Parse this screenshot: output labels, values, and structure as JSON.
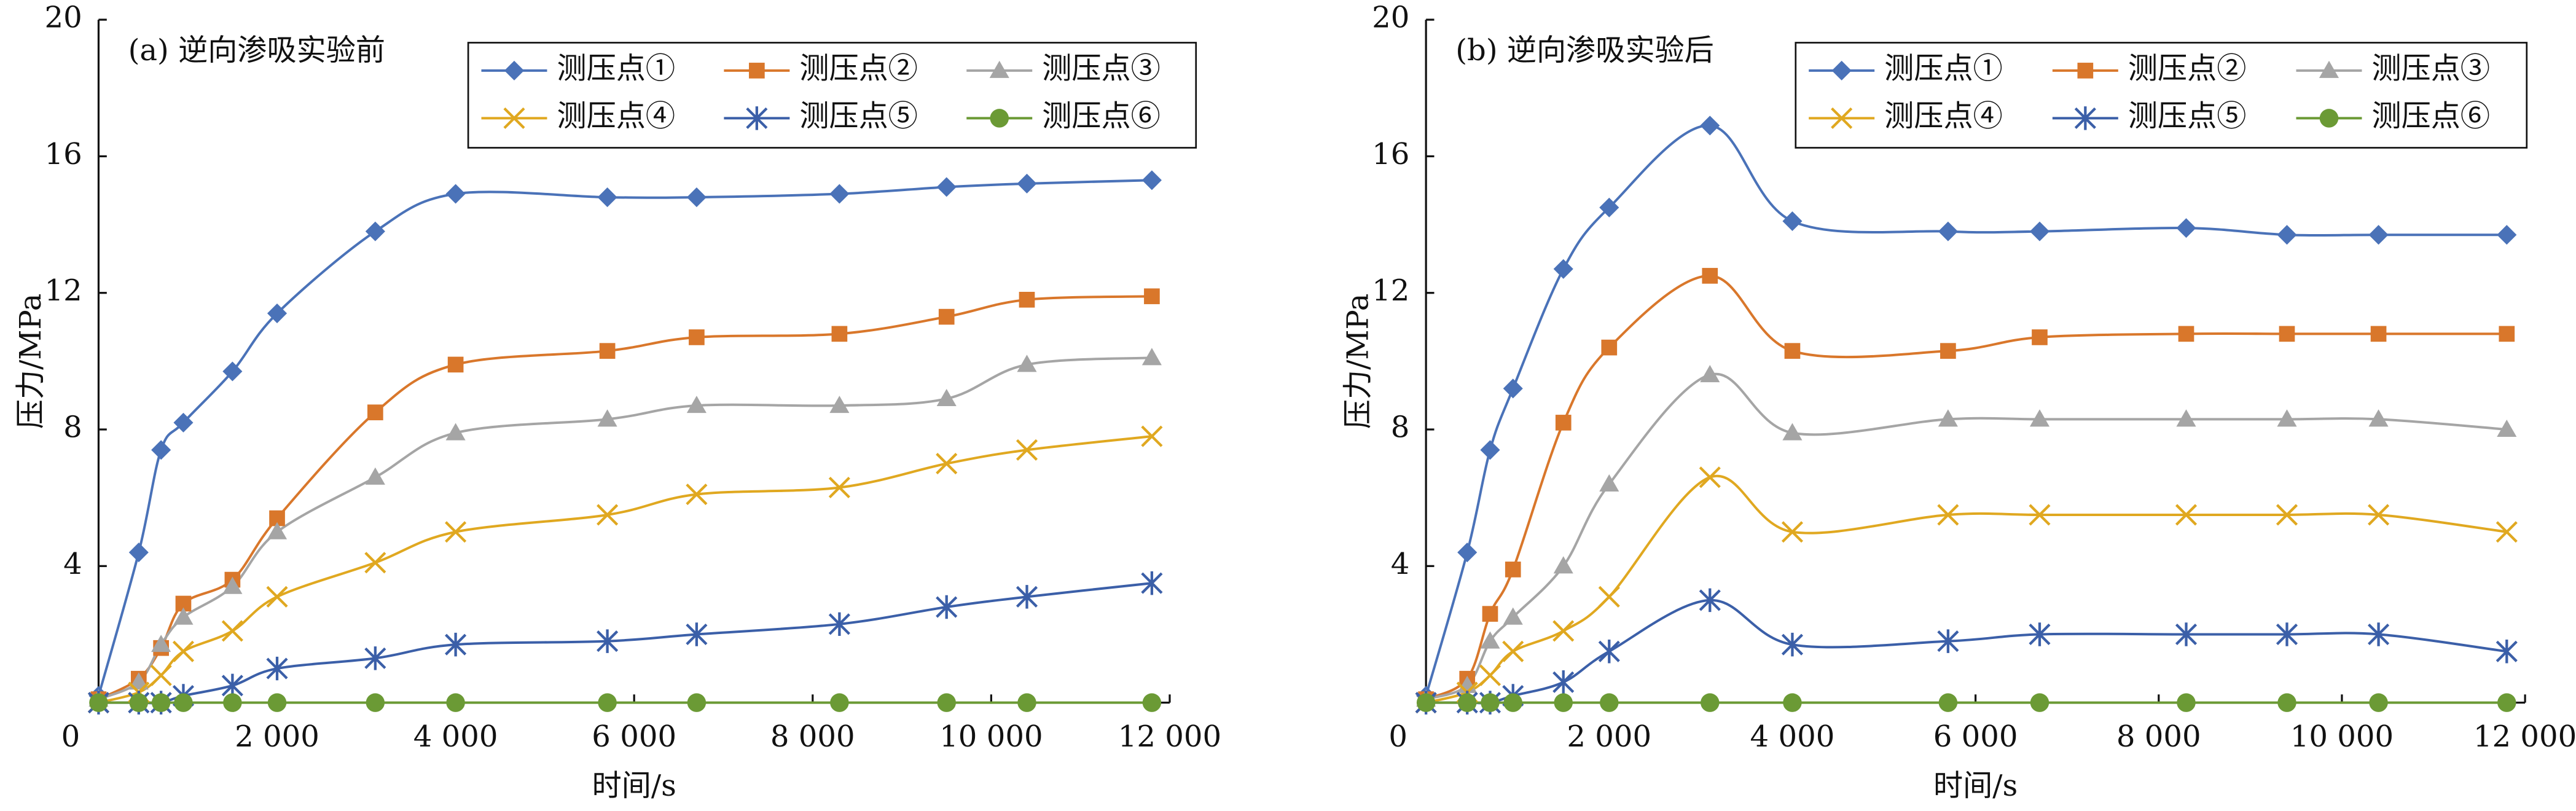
{
  "chart_data": [
    {
      "type": "line",
      "title": "(a) 逆向渗吸实验前",
      "xlabel": "时间/s",
      "ylabel": "压力/MPa",
      "x": [
        0,
        450,
        700,
        950,
        1500,
        2000,
        3100,
        4000,
        5700,
        6700,
        8300,
        9500,
        10400,
        11800
      ],
      "xlim": [
        0,
        12000
      ],
      "ylim": [
        0,
        20
      ],
      "xticks": [
        0,
        {
          "value": 2000,
          "label": "2 000"
        },
        {
          "value": 4000,
          "label": "4 000"
        },
        {
          "value": 6000,
          "label": "6 000"
        },
        {
          "value": 8000,
          "label": "8 000"
        },
        {
          "value": 10000,
          "label": "10 000"
        },
        {
          "value": 12000,
          "label": "12 000"
        }
      ],
      "yticks": [
        4,
        8,
        12,
        16,
        20
      ],
      "legend": "upper right",
      "smooth": true,
      "series": [
        {
          "name": "测压点①",
          "color": "#4a72b8",
          "marker": "diamond",
          "values": [
            0.2,
            4.4,
            7.4,
            8.2,
            9.7,
            11.4,
            13.8,
            14.9,
            14.8,
            14.8,
            14.9,
            15.1,
            15.2,
            15.3
          ]
        },
        {
          "name": "测压点②",
          "color": "#d9772b",
          "marker": "square",
          "values": [
            0.1,
            0.7,
            1.6,
            2.9,
            3.6,
            5.4,
            8.5,
            9.9,
            10.3,
            10.7,
            10.8,
            11.3,
            11.8,
            11.9
          ]
        },
        {
          "name": "测压点③",
          "color": "#a5a5a5",
          "marker": "triangle",
          "values": [
            0.1,
            0.6,
            1.7,
            2.5,
            3.4,
            5.0,
            6.6,
            7.9,
            8.3,
            8.7,
            8.7,
            8.9,
            9.9,
            10.1
          ]
        },
        {
          "name": "测压点④",
          "color": "#e0a820",
          "marker": "x",
          "values": [
            0,
            0.3,
            0.8,
            1.5,
            2.1,
            3.1,
            4.1,
            5.0,
            5.5,
            6.1,
            6.3,
            7.0,
            7.4,
            7.8
          ]
        },
        {
          "name": "测压点⑤",
          "color": "#3b5fa8",
          "marker": "star",
          "values": [
            0,
            0,
            0,
            0.2,
            0.5,
            1.0,
            1.3,
            1.7,
            1.8,
            2.0,
            2.3,
            2.8,
            3.1,
            3.5
          ]
        },
        {
          "name": "测压点⑥",
          "color": "#6b9a35",
          "marker": "circle",
          "values": [
            0,
            0,
            0,
            0,
            0,
            0,
            0,
            0,
            0,
            0,
            0,
            0,
            0,
            0
          ]
        }
      ]
    },
    {
      "type": "line",
      "title": "(b) 逆向渗吸实验后",
      "xlabel": "时间/s",
      "ylabel": "压力/MPa",
      "x": [
        0,
        450,
        700,
        950,
        1500,
        2000,
        3100,
        4000,
        5700,
        6700,
        8300,
        9400,
        10400,
        11800
      ],
      "xlim": [
        0,
        12000
      ],
      "ylim": [
        0,
        20
      ],
      "xticks": [
        0,
        {
          "value": 2000,
          "label": "2 000"
        },
        {
          "value": 4000,
          "label": "4 000"
        },
        {
          "value": 6000,
          "label": "6 000"
        },
        {
          "value": 8000,
          "label": "8 000"
        },
        {
          "value": 10000,
          "label": "10 000"
        },
        {
          "value": 12000,
          "label": "12 000"
        }
      ],
      "yticks": [
        4,
        8,
        12,
        16,
        20
      ],
      "legend": "upper right",
      "smooth": true,
      "series": [
        {
          "name": "测压点①",
          "color": "#4a72b8",
          "marker": "diamond",
          "values": [
            0.2,
            4.4,
            7.4,
            9.2,
            12.7,
            14.5,
            16.9,
            14.1,
            13.8,
            13.8,
            13.9,
            13.7,
            13.7,
            13.7
          ]
        },
        {
          "name": "测压点②",
          "color": "#d9772b",
          "marker": "square",
          "values": [
            0.1,
            0.7,
            2.6,
            3.9,
            8.2,
            10.4,
            12.5,
            10.3,
            10.3,
            10.7,
            10.8,
            10.8,
            10.8,
            10.8
          ]
        },
        {
          "name": "测压点③",
          "color": "#a5a5a5",
          "marker": "triangle",
          "values": [
            0.1,
            0.5,
            1.8,
            2.5,
            4.0,
            6.4,
            9.6,
            7.9,
            8.3,
            8.3,
            8.3,
            8.3,
            8.3,
            8.0
          ]
        },
        {
          "name": "测压点④",
          "color": "#e0a820",
          "marker": "x",
          "values": [
            0,
            0.3,
            0.8,
            1.5,
            2.1,
            3.1,
            6.6,
            5.0,
            5.5,
            5.5,
            5.5,
            5.5,
            5.5,
            5.0
          ]
        },
        {
          "name": "测压点⑤",
          "color": "#3b5fa8",
          "marker": "star",
          "values": [
            0,
            0,
            0,
            0.2,
            0.6,
            1.5,
            3.0,
            1.7,
            1.8,
            2.0,
            2.0,
            2.0,
            2.0,
            1.5
          ]
        },
        {
          "name": "测压点⑥",
          "color": "#6b9a35",
          "marker": "circle",
          "values": [
            0,
            0,
            0,
            0,
            0,
            0,
            0,
            0,
            0,
            0,
            0,
            0,
            0,
            0
          ]
        }
      ]
    }
  ]
}
